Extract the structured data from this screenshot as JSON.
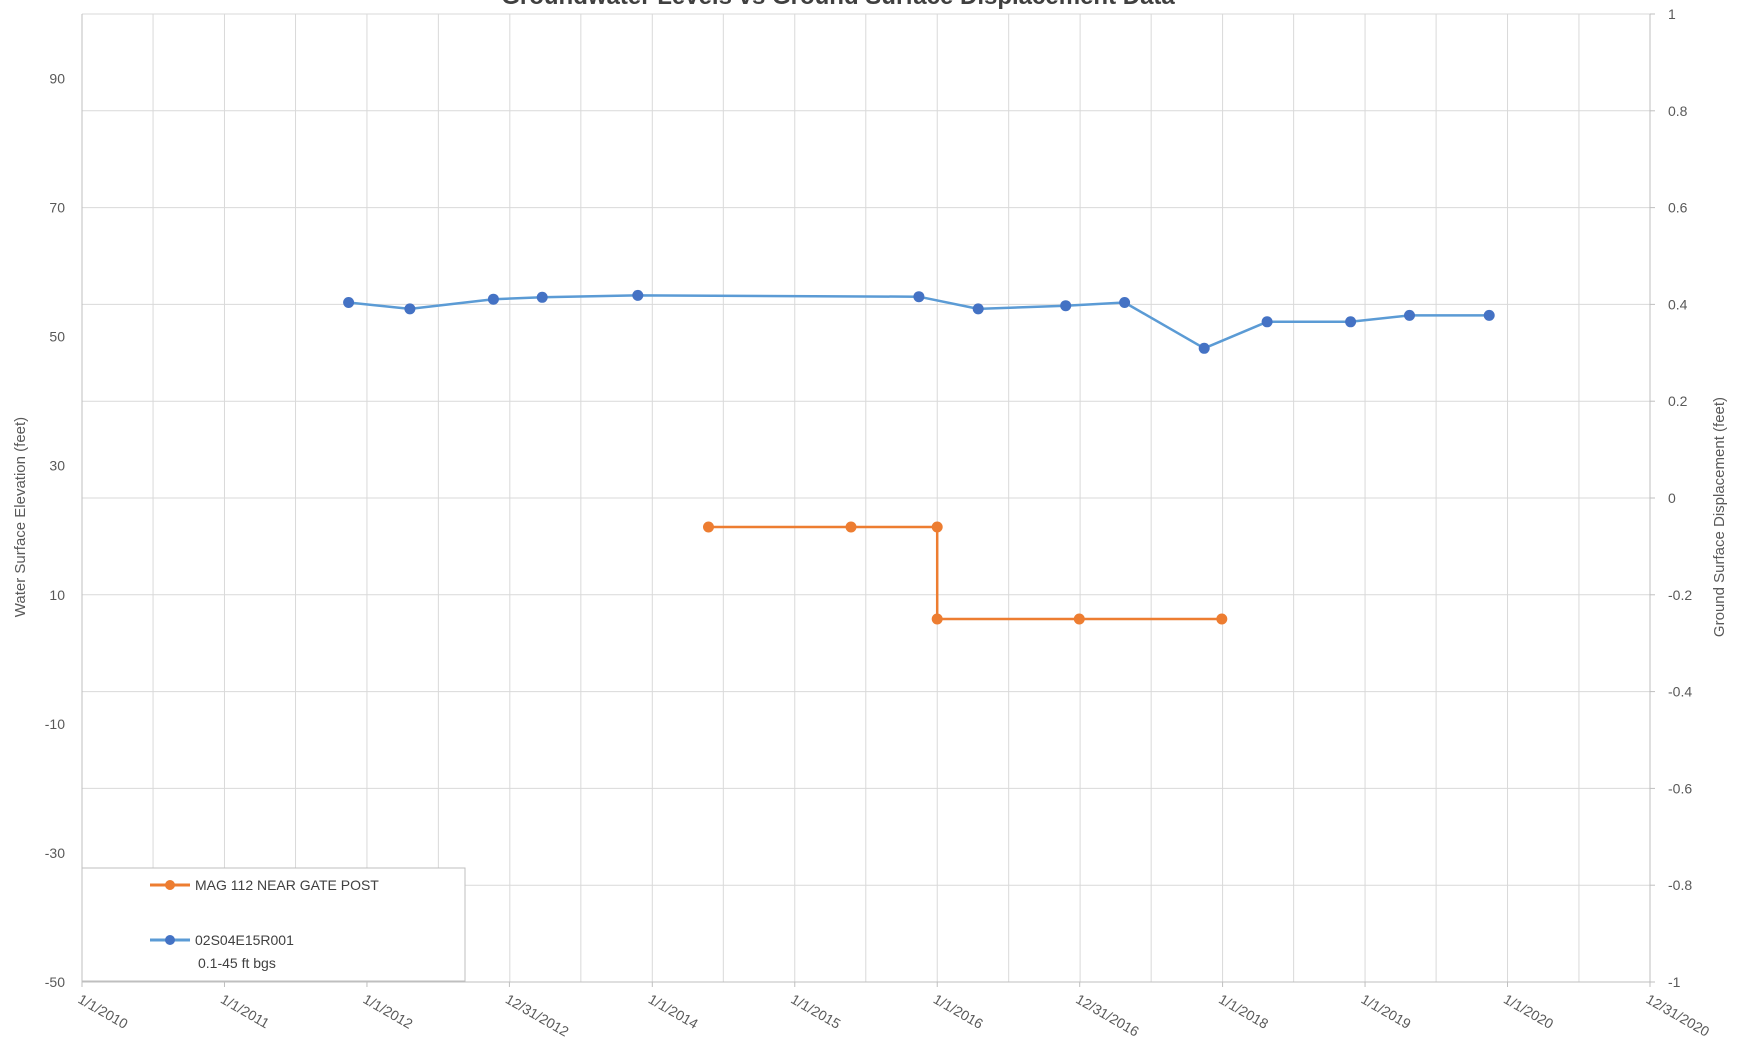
{
  "chart_data": {
    "type": "line",
    "title": "Groundwater Levels vs Ground Surface Displacement Data",
    "y_left_label": "Water Surface Elevation (feet)",
    "y_right_label": "Ground Surface Displacement (feet)",
    "y_left_range": [
      -50,
      100
    ],
    "y_left_ticks": [
      "-50",
      "-30",
      "-10",
      "10",
      "30",
      "50",
      "70",
      "90"
    ],
    "y_right_range": [
      -1,
      1
    ],
    "y_right_ticks": [
      "-1",
      "-0.8",
      "-0.6",
      "-0.4",
      "-0.2",
      "0",
      "0.2",
      "0.4",
      "0.6",
      "0.8",
      "1"
    ],
    "x_range": [
      "2010-01-01",
      "2020-12-31"
    ],
    "x_tick_labels": [
      "1/1/2010",
      "1/1/2011",
      "1/1/2012",
      "12/31/2012",
      "1/1/2014",
      "1/1/2015",
      "1/1/2016",
      "12/31/2016",
      "1/1/2018",
      "1/1/2019",
      "1/1/2020",
      "12/31/2020"
    ],
    "x_tick_dates": [
      "2010-01-01",
      "2011-01-01",
      "2012-01-01",
      "2012-12-31",
      "2014-01-01",
      "2015-01-01",
      "2016-01-01",
      "2016-12-31",
      "2018-01-01",
      "2019-01-01",
      "2020-01-01",
      "2020-12-31"
    ],
    "grid": true,
    "legend_position": "bottom-left",
    "series": [
      {
        "name": "MAG 112 NEAR GATE POST",
        "axis": "right",
        "color": "#ED7D31",
        "step": true,
        "points": [
          {
            "x": "2014-05-25",
            "y": -0.06
          },
          {
            "x": "2015-05-25",
            "y": -0.06
          },
          {
            "x": "2016-01-01",
            "y": -0.06
          },
          {
            "x": "2016-01-01",
            "y": -0.25
          },
          {
            "x": "2016-12-30",
            "y": -0.25
          },
          {
            "x": "2017-12-30",
            "y": -0.25
          }
        ]
      },
      {
        "name": "02S04E15R001",
        "name_line2": "0.1-45 ft bgs",
        "axis": "left",
        "color": "#5B9BD5",
        "marker_color": "#4472C4",
        "step": false,
        "points": [
          {
            "x": "2011-11-15",
            "y": 55.3
          },
          {
            "x": "2012-04-20",
            "y": 54.3
          },
          {
            "x": "2012-11-20",
            "y": 55.8
          },
          {
            "x": "2013-03-25",
            "y": 56.1
          },
          {
            "x": "2013-11-25",
            "y": 56.4
          },
          {
            "x": "2015-11-15",
            "y": 56.2
          },
          {
            "x": "2016-04-15",
            "y": 54.3
          },
          {
            "x": "2016-11-25",
            "y": 54.8
          },
          {
            "x": "2017-04-25",
            "y": 55.3
          },
          {
            "x": "2017-11-15",
            "y": 48.2
          },
          {
            "x": "2018-04-25",
            "y": 52.3
          },
          {
            "x": "2018-11-25",
            "y": 52.3
          },
          {
            "x": "2019-04-25",
            "y": 53.3
          },
          {
            "x": "2019-11-15",
            "y": 53.3
          }
        ]
      }
    ]
  }
}
